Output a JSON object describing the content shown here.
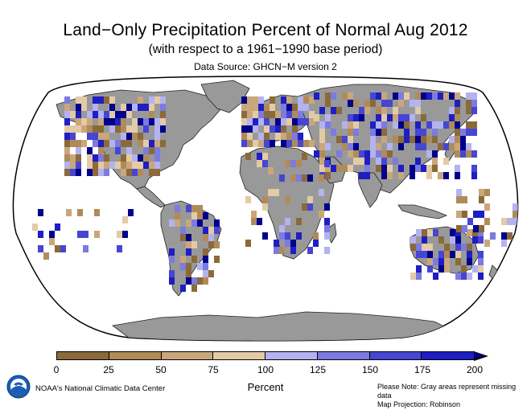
{
  "header": {
    "title": "Land−Only Precipitation Percent of Normal Aug 2012",
    "subtitle": "(with respect to a 1961−1990 base period)",
    "source": "Data Source: GHCN−M version 2"
  },
  "legend": {
    "unit": "Percent",
    "ticks": [
      "0",
      "25",
      "50",
      "75",
      "100",
      "125",
      "150",
      "175",
      "200"
    ],
    "colors": [
      "#8b6a3a",
      "#b08b5a",
      "#c9a77a",
      "#e3cba6",
      "#b3b3f0",
      "#7b7be0",
      "#4646d2",
      "#1e1ec3",
      "#00008b"
    ]
  },
  "footer": {
    "ncdc": "NOAA's National Climatic Data Center",
    "note_line1": "Please Note: Gray areas represent missing data",
    "note_line2": "Map Projection: Robinson"
  },
  "map": {
    "projection": "Robinson",
    "ocean_color": "#ffffff",
    "land_color": "#999999",
    "missing_data_color": "#999999"
  },
  "logo": {
    "name": "noaa-logo",
    "text": "NOAA"
  }
}
